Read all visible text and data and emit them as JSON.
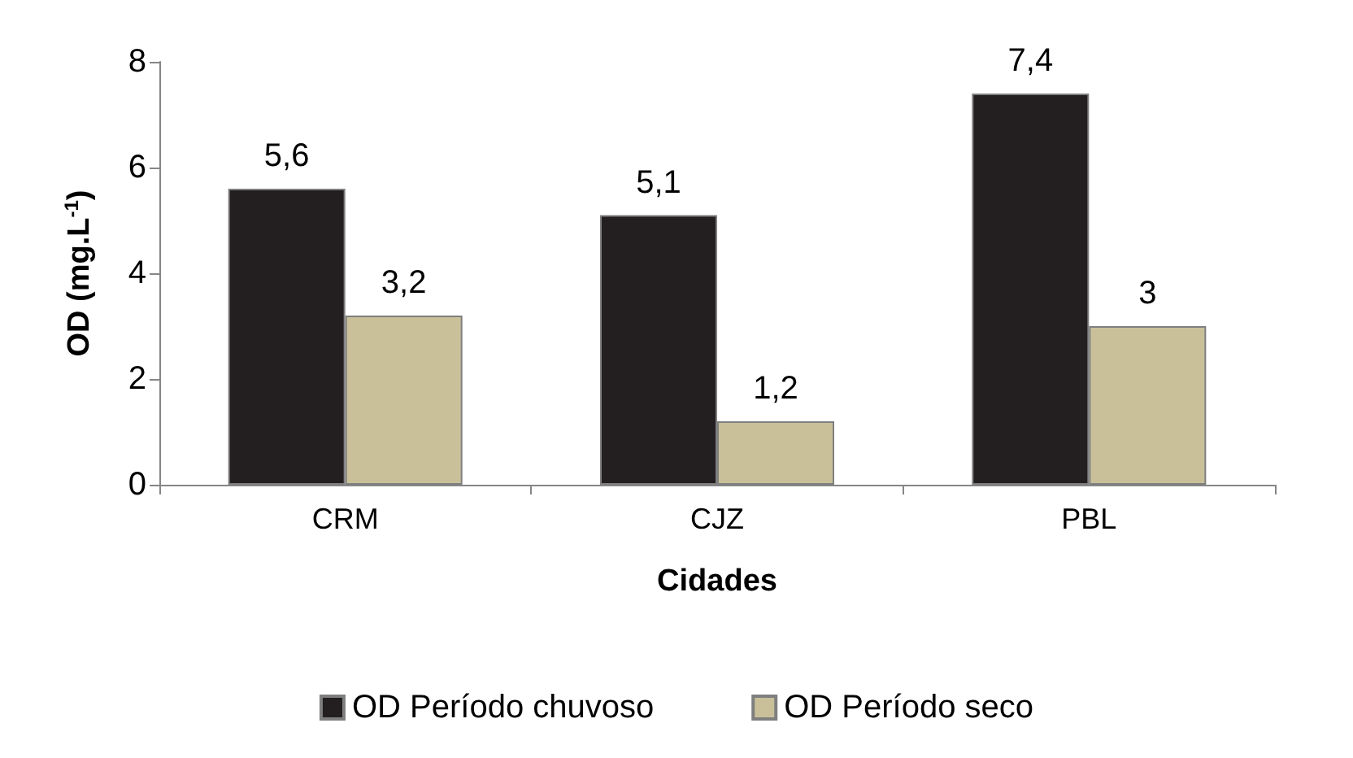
{
  "chart_data": {
    "type": "bar",
    "xlabel": "Cidades",
    "ylabel": "OD (mg.L$^{-1}$)",
    "categories": [
      "CRM",
      "CJZ",
      "PBL"
    ],
    "series": [
      {
        "name": "OD Período chuvoso",
        "color": "#231f20",
        "values": [
          5.6,
          5.1,
          7.4
        ],
        "value_labels": [
          "5,6",
          "5,1",
          "7,4"
        ]
      },
      {
        "name": "OD Período seco",
        "color": "#c9c09a",
        "values": [
          3.2,
          1.2,
          3
        ],
        "value_labels": [
          "3,2",
          "1,2",
          "3"
        ]
      }
    ],
    "ylim": [
      0,
      8
    ],
    "yticks": [
      0,
      2,
      4,
      6,
      8
    ],
    "grid": false,
    "legend": "bottom"
  }
}
